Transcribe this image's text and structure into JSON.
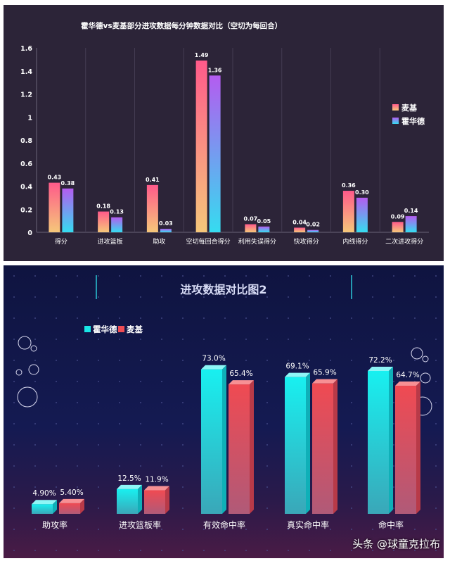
{
  "chart_data": [
    {
      "type": "bar",
      "title": "霍华德vs麦基部分进攻数据每分钟数据对比（空切为每回合）",
      "categories": [
        "得分",
        "进攻篮板",
        "助攻",
        "空切每回合得分",
        "利用失误得分",
        "快攻得分",
        "内线得分",
        "二次进攻得分"
      ],
      "series": [
        {
          "name": "麦基",
          "values": [
            0.43,
            0.18,
            0.41,
            1.49,
            0.07,
            0.04,
            0.36,
            0.09
          ],
          "labels": [
            "0.43",
            "0.18",
            "0.41",
            "1.49",
            "0.07",
            "0.04",
            "0.36",
            "0.09"
          ],
          "color_top": "#ff5a8a",
          "color_bottom": "#f5c77a"
        },
        {
          "name": "霍华德",
          "values": [
            0.38,
            0.13,
            0.03,
            1.36,
            0.05,
            0.02,
            0.3,
            0.14
          ],
          "labels": [
            "0.38",
            "0.13",
            "0.03",
            "1.36",
            "0.05",
            "0.02",
            "0.30",
            "0.14"
          ],
          "color_top": "#b45cf0",
          "color_bottom": "#35dcf0"
        }
      ],
      "ylim": [
        0,
        1.6
      ],
      "yticks": [
        "0",
        "0.2",
        "0.4",
        "0.6",
        "0.8",
        "1",
        "1.2",
        "1.4",
        "1.6"
      ],
      "legend": "right",
      "background": "#2c2438"
    },
    {
      "type": "bar",
      "title": "进攻数据对比图2",
      "categories": [
        "助攻率",
        "进攻篮板率",
        "有效命中率",
        "真实命中率",
        "命中率"
      ],
      "series": [
        {
          "name": "霍华德",
          "values": [
            4.9,
            12.5,
            73.0,
            69.1,
            72.2
          ],
          "labels": [
            "4.90%",
            "12.5%",
            "73.0%",
            "69.1%",
            "72.2%"
          ],
          "color": "#19e6e6"
        },
        {
          "name": "麦基",
          "values": [
            5.4,
            11.9,
            65.4,
            65.9,
            64.7
          ],
          "labels": [
            "5.40%",
            "11.9%",
            "65.4%",
            "65.9%",
            "64.7%"
          ],
          "color": "#ef4d55"
        }
      ],
      "ylim": [
        0,
        80
      ],
      "legend": "top-left"
    }
  ],
  "watermark": "头条 @球童克拉布"
}
